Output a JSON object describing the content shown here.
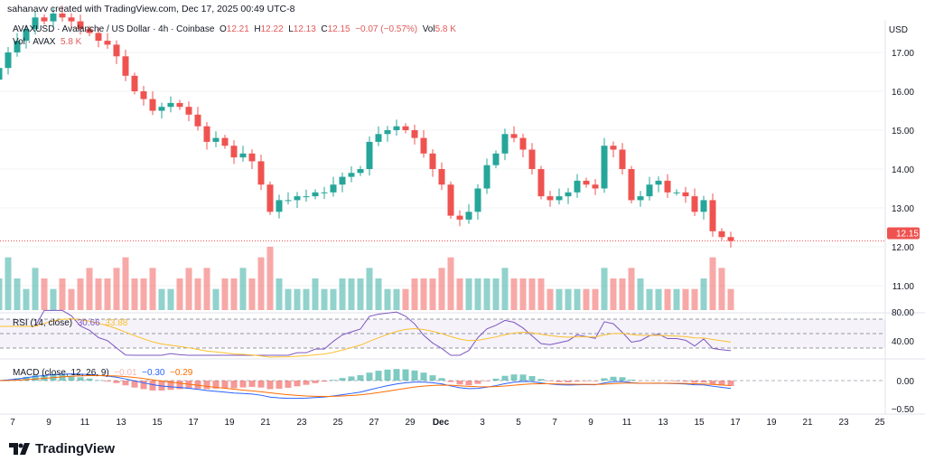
{
  "header": {
    "credit": "sahanavv created with TradingView.com, Dec 17, 2025 00:49 UTC-8"
  },
  "legend": {
    "symbol": "AVAXUSD · Avalanche / US Dollar · 4h · Coinbase",
    "o_label": "O",
    "o": "12.21",
    "h_label": "H",
    "h": "12.22",
    "l_label": "L",
    "l": "12.13",
    "c_label": "C",
    "c": "12.15",
    "change": "−0.07 (−0.57%)",
    "vol_label": "Vol",
    "vol": "5.8 K",
    "vol_line_label": "Vol · AVAX",
    "vol_line_value": "5.8 K",
    "rsi_label": "RSI (14, close)",
    "rsi_value": "30.66",
    "rsi_ma": "33.88",
    "macd_label": "MACD (close, 12, 26, 9)",
    "macd_hist": "−0.01",
    "macd_line": "−0.30",
    "macd_signal": "−0.29"
  },
  "brand": {
    "name": "TradingView"
  },
  "colors": {
    "up": "#26a69a",
    "down": "#ef5350",
    "rsi": "#7e57c2",
    "rsi_ma": "#fbc02d",
    "macd": "#2962ff",
    "signal": "#ff6d00"
  },
  "chart_data": {
    "type": "candlestick",
    "currency": "USD",
    "last_price": "12.15",
    "price_ticks": [
      "17.00",
      "16.00",
      "15.00",
      "14.00",
      "13.00",
      "12.00",
      "11.00"
    ],
    "rsi_ticks": [
      "80.00",
      "40.00"
    ],
    "macd_ticks": [
      "0.00",
      "−0.50"
    ],
    "x_ticks": [
      "7",
      "9",
      "11",
      "13",
      "15",
      "17",
      "19",
      "21",
      "23",
      "25",
      "27",
      "29",
      "Dec",
      "3",
      "5",
      "7",
      "9",
      "11",
      "13",
      "15",
      "17",
      "19",
      "21",
      "23",
      "25"
    ],
    "closes": [
      16.6,
      17.0,
      17.3,
      17.6,
      17.9,
      17.8,
      18.0,
      17.9,
      17.8,
      17.6,
      17.5,
      17.3,
      17.2,
      16.9,
      16.4,
      16.0,
      15.8,
      15.5,
      15.6,
      15.7,
      15.6,
      15.4,
      15.1,
      14.7,
      14.8,
      14.6,
      14.3,
      14.4,
      14.2,
      13.6,
      12.9,
      13.2,
      13.2,
      13.3,
      13.3,
      13.4,
      13.4,
      13.6,
      13.8,
      13.9,
      14.0,
      14.7,
      14.9,
      15.0,
      15.1,
      15.0,
      14.8,
      14.4,
      14.0,
      13.6,
      12.8,
      12.7,
      12.9,
      13.5,
      14.1,
      14.4,
      14.9,
      14.8,
      14.5,
      14.0,
      13.3,
      13.2,
      13.3,
      13.4,
      13.7,
      13.6,
      13.5,
      14.6,
      14.5,
      14.0,
      13.2,
      13.3,
      13.6,
      13.7,
      13.4,
      13.4,
      13.3,
      12.9,
      13.2,
      12.4,
      12.25,
      12.15
    ],
    "volume": [
      3,
      5,
      3,
      2,
      4,
      3,
      2,
      3,
      2,
      3,
      4,
      3,
      3,
      4,
      5,
      3,
      3,
      4,
      2,
      2,
      3,
      4,
      3,
      4,
      2,
      3,
      3,
      4,
      3,
      5,
      6,
      3,
      2,
      2,
      2,
      3,
      2,
      2,
      3,
      3,
      3,
      4,
      3,
      2,
      2,
      2,
      3,
      3,
      3,
      4,
      5,
      3,
      3,
      3,
      3,
      3,
      4,
      3,
      3,
      3,
      3,
      2,
      2,
      2,
      2,
      2,
      2,
      4,
      3,
      3,
      4,
      3,
      2,
      2,
      2,
      2,
      2,
      2,
      3,
      5,
      4,
      2
    ]
  }
}
